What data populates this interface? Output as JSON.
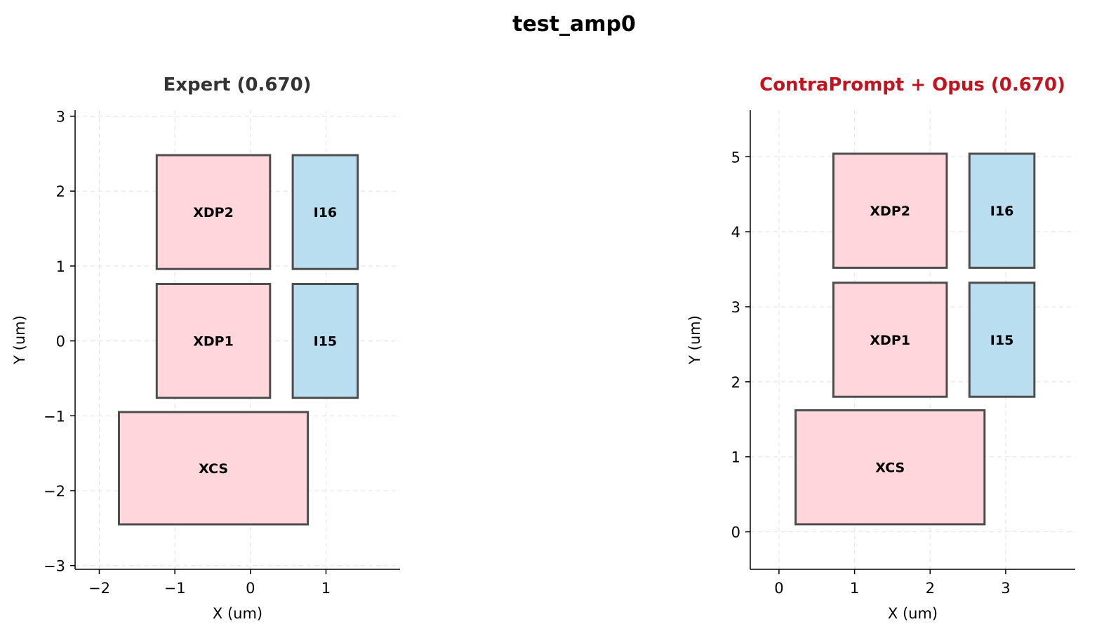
{
  "figure": {
    "title": "test_amp0"
  },
  "chart_data": [
    {
      "type": "layout",
      "title": "Expert (0.670)",
      "title_color": "#333333",
      "xlabel": "X (um)",
      "ylabel": "Y (um)",
      "xlim": [
        -2.32,
        1.98
      ],
      "ylim": [
        -3.05,
        3.08
      ],
      "xticks": [
        -2,
        -1,
        0,
        1
      ],
      "xtick_labels": [
        "−2",
        "−1",
        "0",
        "1"
      ],
      "yticks": [
        -3,
        -2,
        -1,
        0,
        1,
        2,
        3
      ],
      "ytick_labels": [
        "−3",
        "−2",
        "−1",
        "0",
        "1",
        "2",
        "3"
      ],
      "grid": true,
      "blocks": [
        {
          "name": "XDP2",
          "x0": -1.24,
          "y0": 0.96,
          "x1": 0.26,
          "y1": 2.48,
          "fill": "#ffd6dc"
        },
        {
          "name": "I16",
          "x0": 0.56,
          "y0": 0.96,
          "x1": 1.42,
          "y1": 2.48,
          "fill": "#b8deef"
        },
        {
          "name": "XDP1",
          "x0": -1.24,
          "y0": -0.76,
          "x1": 0.26,
          "y1": 0.76,
          "fill": "#ffd6dc"
        },
        {
          "name": "I15",
          "x0": 0.56,
          "y0": -0.76,
          "x1": 1.42,
          "y1": 0.76,
          "fill": "#b8deef"
        },
        {
          "name": "XCS",
          "x0": -1.74,
          "y0": -2.45,
          "x1": 0.76,
          "y1": -0.95,
          "fill": "#ffd6dc"
        }
      ]
    },
    {
      "type": "layout",
      "title": "ContraPrompt + Opus (0.670)",
      "title_color": "#c0141e",
      "xlabel": "X (um)",
      "ylabel": "Y (um)",
      "xlim": [
        -0.38,
        3.92
      ],
      "ylim": [
        -0.5,
        5.62
      ],
      "xticks": [
        0,
        1,
        2,
        3
      ],
      "xtick_labels": [
        "0",
        "1",
        "2",
        "3"
      ],
      "yticks": [
        0,
        1,
        2,
        3,
        4,
        5
      ],
      "ytick_labels": [
        "0",
        "1",
        "2",
        "3",
        "4",
        "5"
      ],
      "grid": true,
      "blocks": [
        {
          "name": "XDP2",
          "x0": 0.72,
          "y0": 3.52,
          "x1": 2.22,
          "y1": 5.04,
          "fill": "#ffd6dc"
        },
        {
          "name": "I16",
          "x0": 2.52,
          "y0": 3.52,
          "x1": 3.38,
          "y1": 5.04,
          "fill": "#b8deef"
        },
        {
          "name": "XDP1",
          "x0": 0.72,
          "y0": 1.8,
          "x1": 2.22,
          "y1": 3.32,
          "fill": "#ffd6dc"
        },
        {
          "name": "I15",
          "x0": 2.52,
          "y0": 1.8,
          "x1": 3.38,
          "y1": 3.32,
          "fill": "#b8deef"
        },
        {
          "name": "XCS",
          "x0": 0.22,
          "y0": 0.1,
          "x1": 2.72,
          "y1": 1.62,
          "fill": "#ffd6dc"
        }
      ]
    }
  ]
}
